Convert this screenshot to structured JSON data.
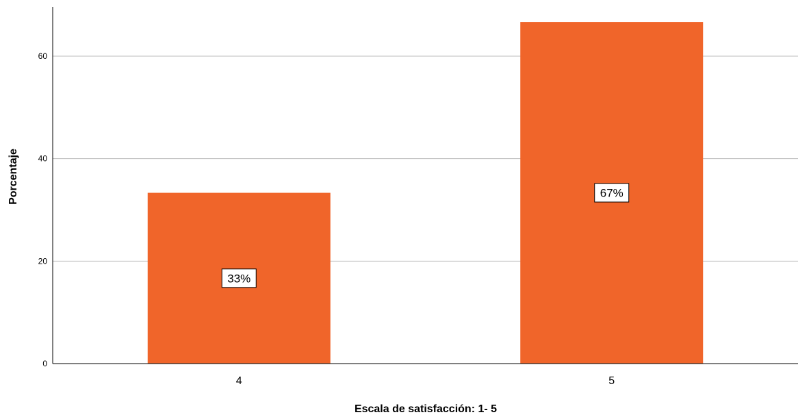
{
  "chart_data": {
    "type": "bar",
    "categories": [
      "4",
      "5"
    ],
    "values": [
      33.33,
      66.67
    ],
    "data_labels": [
      "33%",
      "67%"
    ],
    "title": "",
    "xlabel": "Escala de satisfacción: 1- 5",
    "ylabel": "Porcentaje",
    "ylim": [
      0,
      70
    ],
    "yticks": [
      0,
      20,
      40,
      60
    ],
    "ytick_labels": [
      "0",
      "20",
      "40",
      "60"
    ],
    "grid": "horizontal",
    "legend": "none",
    "bar_color": "#F0652A",
    "grid_color": "#BDBDBD",
    "axis_color": "#000000"
  }
}
